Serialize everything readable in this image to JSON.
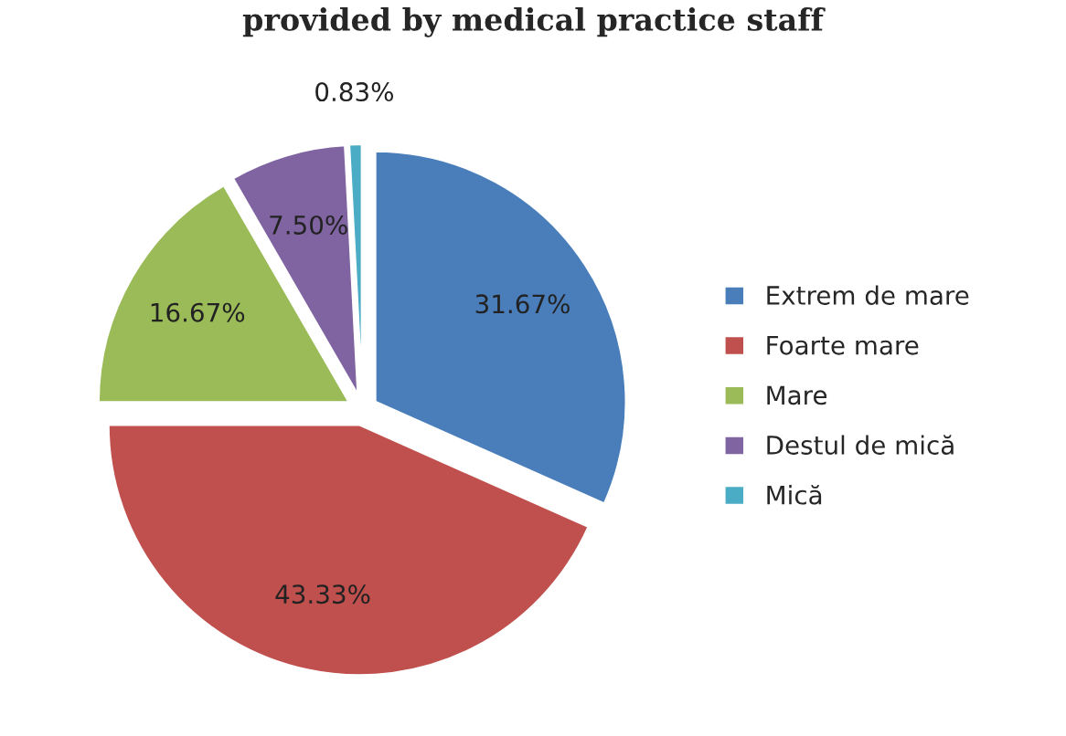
{
  "chart_data": {
    "type": "pie",
    "title": "provided by medical practice staff",
    "categories": [
      "Extrem de mare",
      "Foarte mare",
      "Mare",
      "Destul de mică",
      "Mică"
    ],
    "values": [
      31.67,
      43.33,
      16.67,
      7.5,
      0.83
    ],
    "value_labels": [
      "31.67%",
      "43.33%",
      "16.67%",
      "7.50%",
      "0.83%"
    ],
    "colors": [
      "#4a7ebb",
      "#c0504d",
      "#9bbb59",
      "#8064a2",
      "#4bacc6"
    ],
    "legend": "right"
  }
}
